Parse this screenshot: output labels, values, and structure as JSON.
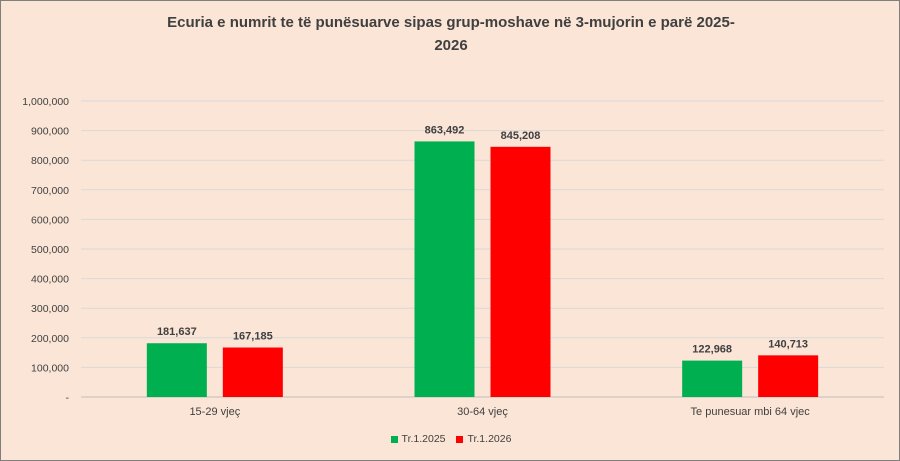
{
  "chart_data": {
    "type": "bar",
    "title": "Ecuria e numrit te të punësuarve sipas grup-moshave në  3-mujorin e parë 2025-\n2026",
    "categories": [
      "15-29 vjeç",
      "30-64 vjeç",
      "Te punesuar mbi 64 vjec"
    ],
    "series": [
      {
        "name": "Tr.1.2025",
        "values": [
          181637,
          863492,
          122968
        ],
        "labels": [
          "181,637",
          "863,492",
          "122,968"
        ],
        "color": "#00b050"
      },
      {
        "name": "Tr.1.2026",
        "values": [
          167185,
          845208,
          140713
        ],
        "labels": [
          "167,185",
          "845,208",
          "140,713"
        ],
        "color": "#ff0000"
      }
    ],
    "ylim": [
      0,
      1000000
    ],
    "yticks": [
      0,
      100000,
      200000,
      300000,
      400000,
      500000,
      600000,
      700000,
      800000,
      900000,
      1000000
    ],
    "ytick_labels": [
      "-",
      "100,000",
      "200,000",
      "300,000",
      "400,000",
      "500,000",
      "600,000",
      "700,000",
      "800,000",
      "900,000",
      "1,000,000"
    ],
    "grid": true,
    "legend_position": "bottom",
    "background_color": "#fbe5d6",
    "gridline_color": "#d9d9d9"
  }
}
